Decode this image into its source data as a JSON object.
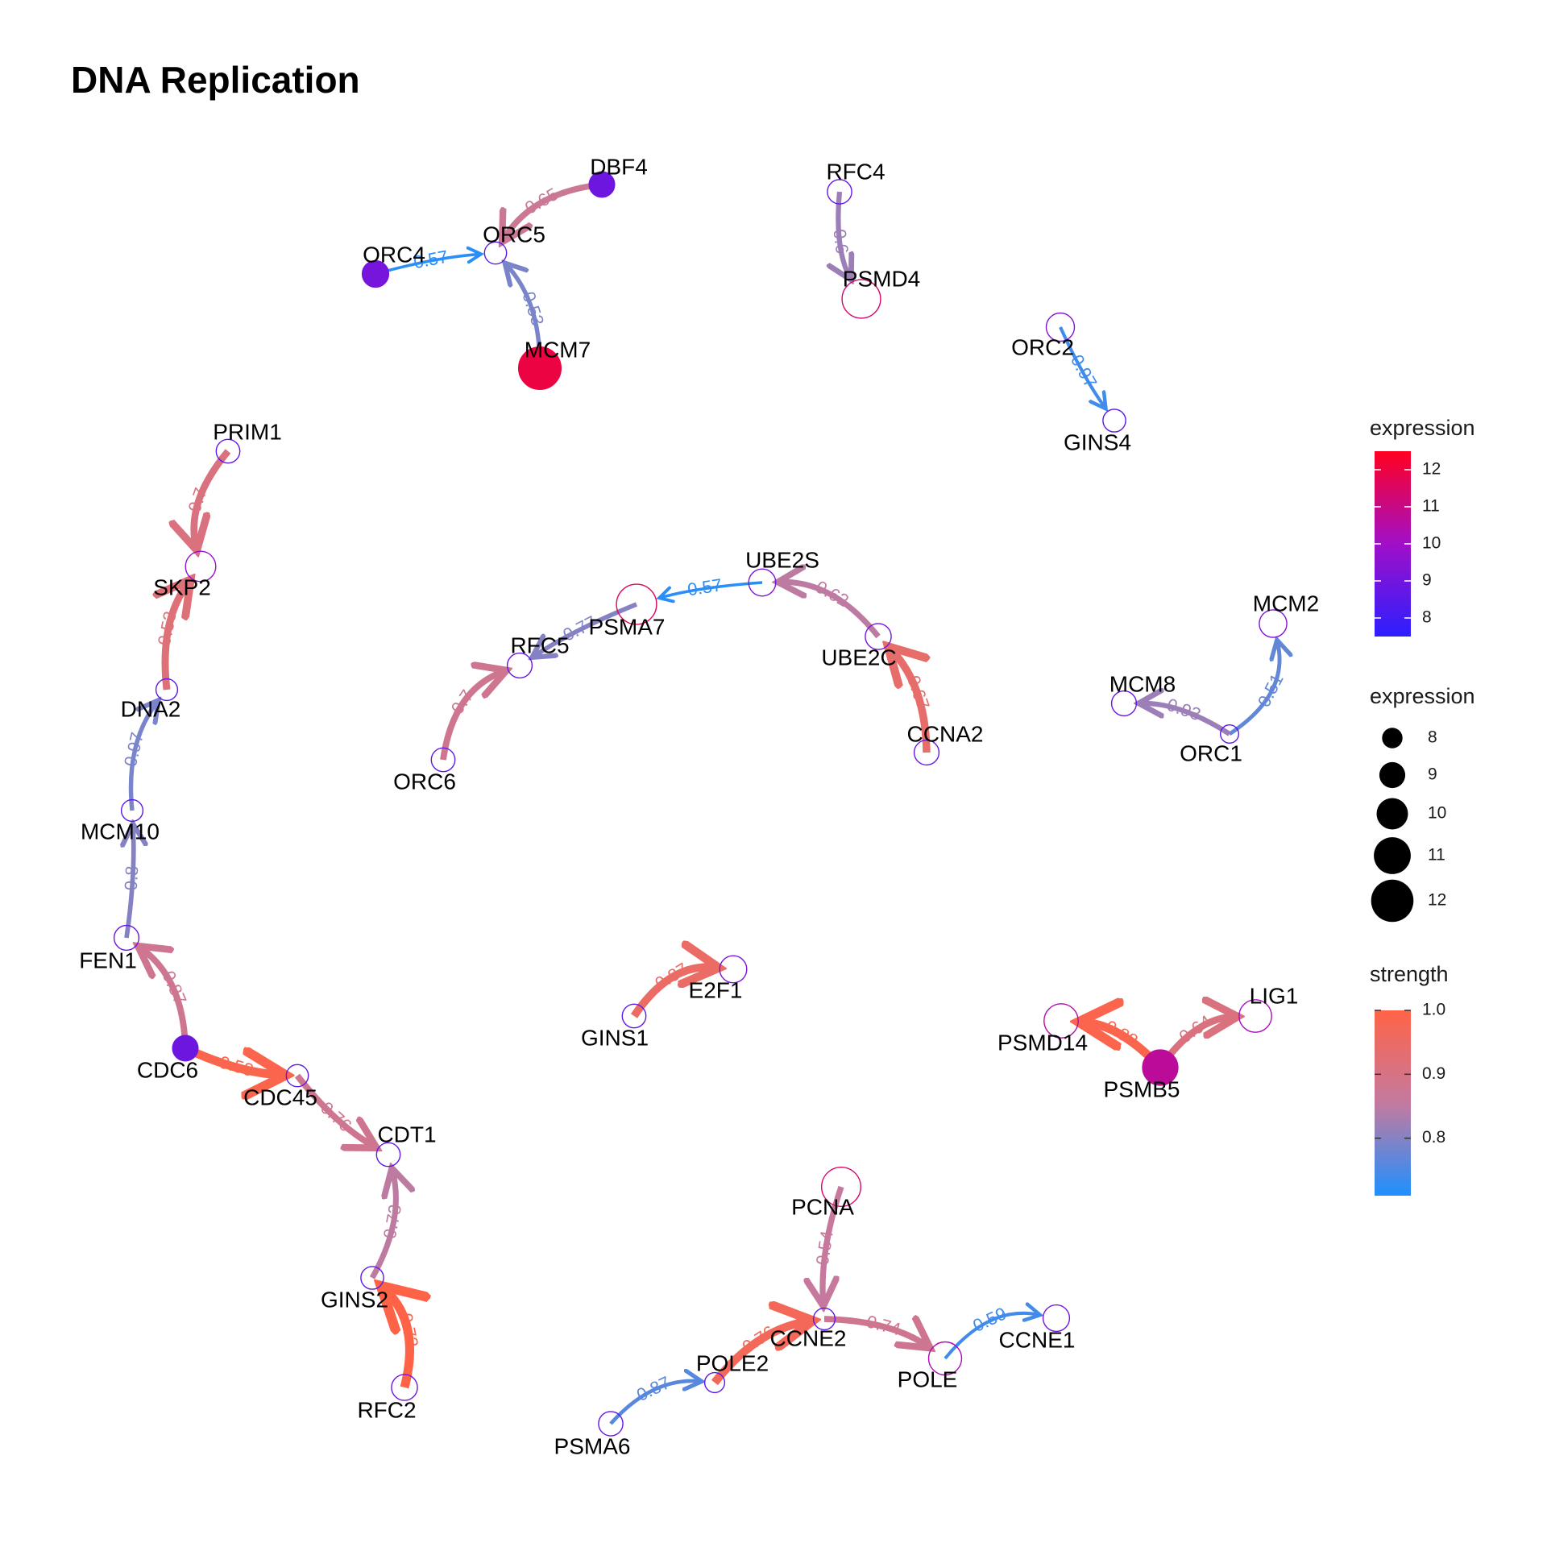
{
  "title": "DNA Replication",
  "node_stroke": "#9b30d9",
  "nodes": [
    {
      "id": "DBF4",
      "expr": 8.9,
      "filled": true
    },
    {
      "id": "ORC5",
      "expr": 8.3,
      "filled": false
    },
    {
      "id": "ORC4",
      "expr": 9.1,
      "filled": true
    },
    {
      "id": "MCM7",
      "expr": 12.0,
      "filled": true
    },
    {
      "id": "RFC4",
      "expr": 8.7,
      "filled": false
    },
    {
      "id": "PSMD4",
      "expr": 11.3,
      "filled": false
    },
    {
      "id": "ORC2",
      "expr": 9.4,
      "filled": false
    },
    {
      "id": "GINS4",
      "expr": 8.4,
      "filled": false
    },
    {
      "id": "PRIM1",
      "expr": 8.6,
      "filled": false
    },
    {
      "id": "SKP2",
      "expr": 9.8,
      "filled": false
    },
    {
      "id": "DNA2",
      "expr": 8.2,
      "filled": false
    },
    {
      "id": "MCM10",
      "expr": 8.2,
      "filled": false
    },
    {
      "id": "FEN1",
      "expr": 8.8,
      "filled": false
    },
    {
      "id": "CDC6",
      "expr": 8.9,
      "filled": true
    },
    {
      "id": "CDC45",
      "expr": 8.3,
      "filled": false
    },
    {
      "id": "CDT1",
      "expr": 8.6,
      "filled": false
    },
    {
      "id": "GINS2",
      "expr": 8.4,
      "filled": false
    },
    {
      "id": "RFC2",
      "expr": 9.0,
      "filled": false
    },
    {
      "id": "UBE2S",
      "expr": 9.2,
      "filled": false
    },
    {
      "id": "PSMA7",
      "expr": 11.6,
      "filled": false
    },
    {
      "id": "RFC5",
      "expr": 8.8,
      "filled": false
    },
    {
      "id": "ORC6",
      "expr": 8.6,
      "filled": false
    },
    {
      "id": "UBE2C",
      "expr": 9.0,
      "filled": false
    },
    {
      "id": "CCNA2",
      "expr": 8.8,
      "filled": false
    },
    {
      "id": "MCM2",
      "expr": 9.3,
      "filled": false
    },
    {
      "id": "MCM8",
      "expr": 8.8,
      "filled": false
    },
    {
      "id": "ORC1",
      "expr": 7.6,
      "filled": false
    },
    {
      "id": "E2F1",
      "expr": 9.2,
      "filled": false
    },
    {
      "id": "GINS1",
      "expr": 8.6,
      "filled": false
    },
    {
      "id": "PSMD14",
      "expr": 10.5,
      "filled": false
    },
    {
      "id": "LIG1",
      "expr": 10.2,
      "filled": false
    },
    {
      "id": "PSMB5",
      "expr": 10.7,
      "filled": true
    },
    {
      "id": "PCNA",
      "expr": 11.4,
      "filled": false
    },
    {
      "id": "CCNE2",
      "expr": 8.2,
      "filled": false
    },
    {
      "id": "POLE",
      "expr": 10.3,
      "filled": false
    },
    {
      "id": "CCNE1",
      "expr": 9.1,
      "filled": false
    },
    {
      "id": "POLE2",
      "expr": 7.9,
      "filled": false
    },
    {
      "id": "PSMA6",
      "expr": 8.7,
      "filled": false
    }
  ],
  "edges": [
    {
      "from": "DBF4",
      "to": "ORC5",
      "label": "0.65",
      "strength": 0.87
    },
    {
      "from": "ORC4",
      "to": "ORC5",
      "label": "0.57",
      "strength": 0.72
    },
    {
      "from": "MCM7",
      "to": "ORC5",
      "label": "0.53",
      "strength": 0.79
    },
    {
      "from": "RFC4",
      "to": "PSMD4",
      "label": "0.6",
      "strength": 0.82
    },
    {
      "from": "ORC2",
      "to": "GINS4",
      "label": "0.97",
      "strength": 0.74
    },
    {
      "from": "PRIM1",
      "to": "SKP2",
      "label": "0.7",
      "strength": 0.91
    },
    {
      "from": "DNA2",
      "to": "SKP2",
      "label": "0.53",
      "strength": 0.92
    },
    {
      "from": "MCM10",
      "to": "DNA2",
      "label": "0.97",
      "strength": 0.79
    },
    {
      "from": "FEN1",
      "to": "MCM10",
      "label": "0.8",
      "strength": 0.8
    },
    {
      "from": "CDC6",
      "to": "FEN1",
      "label": "0.87",
      "strength": 0.88
    },
    {
      "from": "CDC6",
      "to": "CDC45",
      "label": "0.58",
      "strength": 0.99
    },
    {
      "from": "CDC45",
      "to": "CDT1",
      "label": "0.76",
      "strength": 0.88
    },
    {
      "from": "GINS2",
      "to": "CDT1",
      "label": "0.73",
      "strength": 0.85
    },
    {
      "from": "RFC2",
      "to": "GINS2",
      "label": "0.73",
      "strength": 1.0
    },
    {
      "from": "UBE2S",
      "to": "PSMA7",
      "label": "0.57",
      "strength": 0.72
    },
    {
      "from": "PSMA7",
      "to": "RFC5",
      "label": "0.77",
      "strength": 0.8
    },
    {
      "from": "ORC6",
      "to": "RFC5",
      "label": "0.7",
      "strength": 0.88
    },
    {
      "from": "UBE2C",
      "to": "UBE2S",
      "label": "0.62",
      "strength": 0.85
    },
    {
      "from": "CCNA2",
      "to": "UBE2C",
      "label": "0.67",
      "strength": 0.94
    },
    {
      "from": "ORC1",
      "to": "MCM2",
      "label": "0.51",
      "strength": 0.77
    },
    {
      "from": "ORC1",
      "to": "MCM8",
      "label": "0.93",
      "strength": 0.82
    },
    {
      "from": "GINS1",
      "to": "E2F1",
      "label": "0.87",
      "strength": 0.95
    },
    {
      "from": "PSMB5",
      "to": "PSMD14",
      "label": "0.88",
      "strength": 0.99
    },
    {
      "from": "PSMB5",
      "to": "LIG1",
      "label": "0.64",
      "strength": 0.91
    },
    {
      "from": "PCNA",
      "to": "CCNE2",
      "label": "0.54",
      "strength": 0.86
    },
    {
      "from": "CCNE2",
      "to": "POLE",
      "label": "0.74",
      "strength": 0.88
    },
    {
      "from": "POLE",
      "to": "CCNE1",
      "label": "0.59",
      "strength": 0.74
    },
    {
      "from": "POLE2",
      "to": "CCNE2",
      "label": "0.76",
      "strength": 0.97
    },
    {
      "from": "PSMA6",
      "to": "POLE2",
      "label": "0.87",
      "strength": 0.76
    }
  ],
  "legend": {
    "color_title": "expression",
    "color_ticks": [
      "12",
      "11",
      "10",
      "9",
      "8"
    ],
    "color_tick_values": [
      12,
      11,
      10,
      9,
      8
    ],
    "color_range": [
      7.5,
      12.5
    ],
    "color_low": "#2b1fff",
    "color_mid": "#a10fc8",
    "color_high": "#ff0020",
    "size_title": "expression",
    "size_ticks": [
      "8",
      "9",
      "10",
      "11",
      "12"
    ],
    "size_tick_values": [
      8,
      9,
      10,
      11,
      12
    ],
    "strength_title": "strength",
    "strength_ticks": [
      "1.0",
      "0.9",
      "0.8"
    ],
    "strength_tick_values": [
      1.0,
      0.9,
      0.8
    ],
    "strength_range": [
      0.71,
      1.0
    ],
    "strength_low": "#1e90ff",
    "strength_mid": "#c47a9f",
    "strength_high": "#ff6347"
  }
}
